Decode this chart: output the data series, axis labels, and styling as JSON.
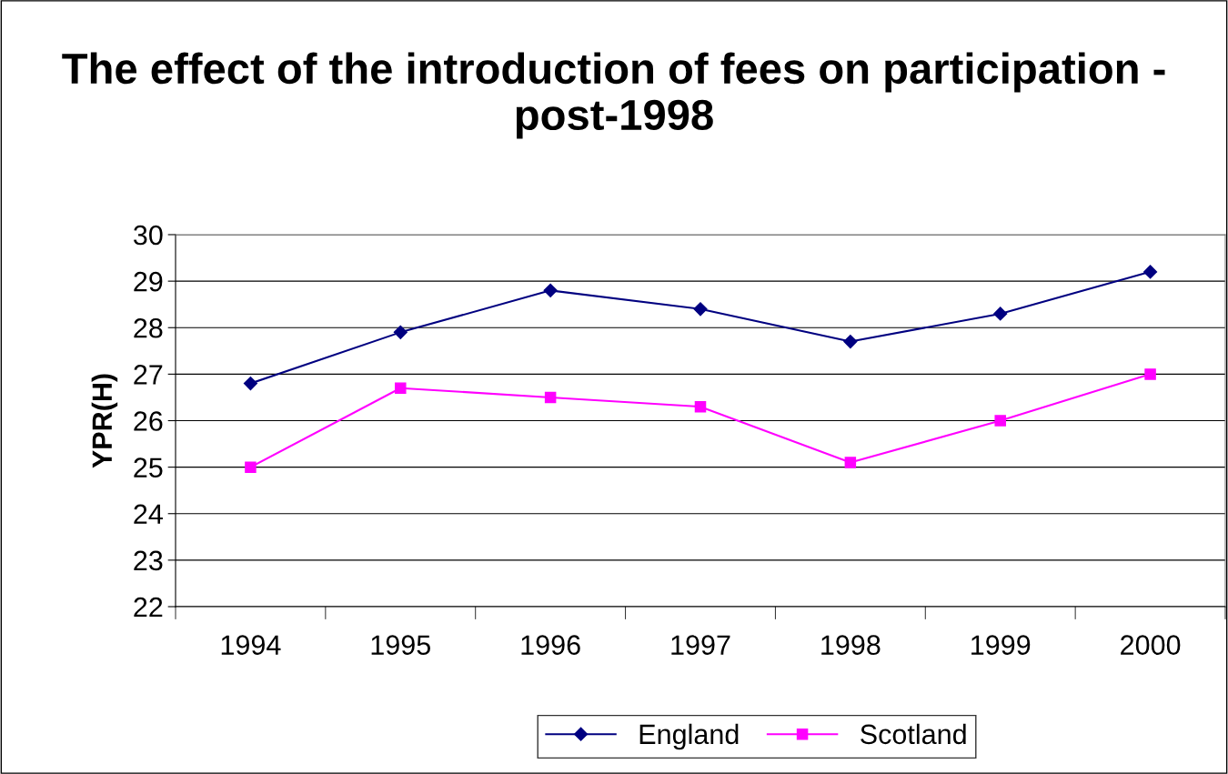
{
  "chart_data": {
    "type": "line",
    "title": "The effect of the introduction of fees on participation - post-1998",
    "ylabel": "YPR(H)",
    "categories": [
      "1994",
      "1995",
      "1996",
      "1997",
      "1998",
      "1999",
      "2000"
    ],
    "series": [
      {
        "name": "England",
        "color": "#000080",
        "marker": "diamond",
        "values": [
          26.8,
          27.9,
          28.8,
          28.4,
          27.7,
          28.3,
          29.2
        ]
      },
      {
        "name": "Scotland",
        "color": "#ff00ff",
        "marker": "square",
        "values": [
          25.0,
          26.7,
          26.5,
          26.3,
          25.1,
          26.0,
          27.0
        ]
      }
    ],
    "ylim": [
      22,
      30
    ],
    "yticks": [
      22,
      23,
      24,
      25,
      26,
      27,
      28,
      29,
      30
    ],
    "grid": "y",
    "legend": "bottom",
    "line_style": "solid"
  }
}
